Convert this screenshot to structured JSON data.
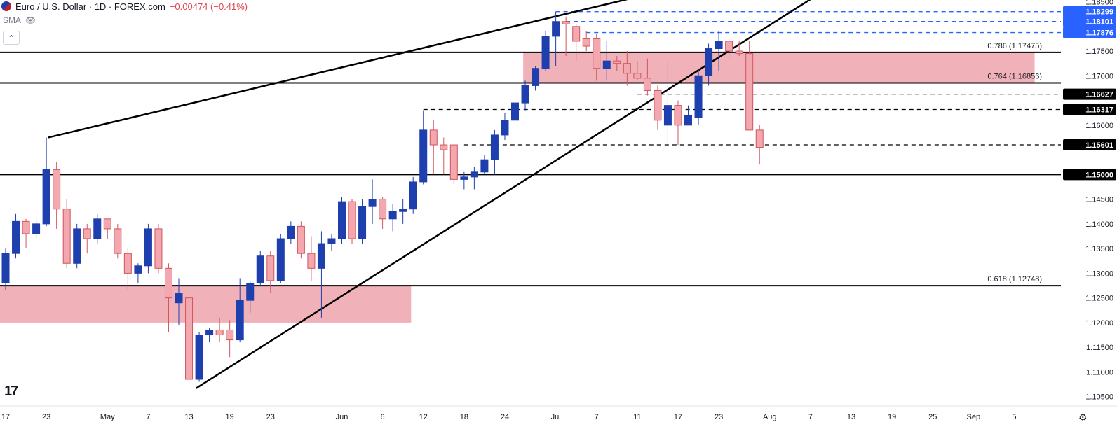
{
  "header": {
    "symbol": "Euro / U.S. Dollar · 1D · FOREX.com",
    "change": "−0.00474 (−0.41%)",
    "indicator": "SMA"
  },
  "colors": {
    "up": "#1e3fae",
    "down_fill": "#f3a7ae",
    "down_border": "#d2555f",
    "zone": "#f0a9b1",
    "badge_blue": "#2962ff",
    "badge_black": "#000000"
  },
  "chart_data": {
    "type": "candlestick",
    "ylim": [
      1.10311,
      1.18536
    ],
    "y_ticks": [
      "1.18500",
      "1.17500",
      "1.17000",
      "1.16000",
      "1.14500",
      "1.14000",
      "1.13500",
      "1.13000",
      "1.12500",
      "1.12000",
      "1.11500",
      "1.11000",
      "1.10500"
    ],
    "x_labels": [
      {
        "i": 0,
        "label": "17"
      },
      {
        "i": 4,
        "label": "23"
      },
      {
        "i": 10,
        "label": "May"
      },
      {
        "i": 14,
        "label": "7"
      },
      {
        "i": 18,
        "label": "13"
      },
      {
        "i": 22,
        "label": "19"
      },
      {
        "i": 26,
        "label": "23"
      },
      {
        "i": 33,
        "label": "Jun"
      },
      {
        "i": 37,
        "label": "6"
      },
      {
        "i": 41,
        "label": "12"
      },
      {
        "i": 45,
        "label": "18"
      },
      {
        "i": 49,
        "label": "24"
      },
      {
        "i": 54,
        "label": "Jul"
      },
      {
        "i": 58,
        "label": "7"
      },
      {
        "i": 62,
        "label": "11"
      },
      {
        "i": 66,
        "label": "17"
      },
      {
        "i": 70,
        "label": "23"
      },
      {
        "i": 75,
        "label": "Aug"
      },
      {
        "i": 79,
        "label": "7"
      },
      {
        "i": 83,
        "label": "13"
      },
      {
        "i": 87,
        "label": "19"
      },
      {
        "i": 91,
        "label": "25"
      },
      {
        "i": 95,
        "label": "Sep"
      },
      {
        "i": 99,
        "label": "5"
      }
    ],
    "candles": [
      [
        1.128,
        1.135,
        1.1265,
        1.134
      ],
      [
        1.134,
        1.142,
        1.133,
        1.1405
      ],
      [
        1.1405,
        1.141,
        1.135,
        1.138
      ],
      [
        1.138,
        1.141,
        1.137,
        1.14
      ],
      [
        1.14,
        1.1575,
        1.1395,
        1.151
      ],
      [
        1.151,
        1.1525,
        1.139,
        1.143
      ],
      [
        1.143,
        1.145,
        1.131,
        1.132
      ],
      [
        1.132,
        1.14,
        1.131,
        1.139
      ],
      [
        1.139,
        1.14,
        1.134,
        1.137
      ],
      [
        1.137,
        1.142,
        1.136,
        1.141
      ],
      [
        1.141,
        1.141,
        1.137,
        1.139
      ],
      [
        1.139,
        1.14,
        1.133,
        1.134
      ],
      [
        1.134,
        1.135,
        1.1265,
        1.13
      ],
      [
        1.13,
        1.132,
        1.128,
        1.1315
      ],
      [
        1.1315,
        1.14,
        1.13,
        1.139
      ],
      [
        1.139,
        1.14,
        1.13,
        1.131
      ],
      [
        1.131,
        1.132,
        1.118,
        1.125
      ],
      [
        1.124,
        1.129,
        1.1195,
        1.126
      ],
      [
        1.125,
        1.125,
        1.1075,
        1.1085
      ],
      [
        1.1085,
        1.118,
        1.108,
        1.1175
      ],
      [
        1.1175,
        1.119,
        1.116,
        1.1185
      ],
      [
        1.1185,
        1.121,
        1.116,
        1.1175
      ],
      [
        1.1185,
        1.1205,
        1.113,
        1.1165
      ],
      [
        1.1165,
        1.129,
        1.116,
        1.1245
      ],
      [
        1.1245,
        1.1285,
        1.122,
        1.128
      ],
      [
        1.128,
        1.1345,
        1.1275,
        1.1335
      ],
      [
        1.1335,
        1.1345,
        1.126,
        1.1285
      ],
      [
        1.1285,
        1.138,
        1.128,
        1.137
      ],
      [
        1.137,
        1.1405,
        1.136,
        1.1395
      ],
      [
        1.1395,
        1.1405,
        1.133,
        1.134
      ],
      [
        1.134,
        1.1375,
        1.1285,
        1.131
      ],
      [
        1.131,
        1.1385,
        1.121,
        1.136
      ],
      [
        1.136,
        1.138,
        1.1345,
        1.137
      ],
      [
        1.137,
        1.1455,
        1.136,
        1.1445
      ],
      [
        1.1445,
        1.145,
        1.136,
        1.137
      ],
      [
        1.137,
        1.145,
        1.136,
        1.1435
      ],
      [
        1.1435,
        1.149,
        1.14,
        1.145
      ],
      [
        1.145,
        1.1455,
        1.139,
        1.141
      ],
      [
        1.141,
        1.144,
        1.1385,
        1.1425
      ],
      [
        1.1425,
        1.145,
        1.14,
        1.143
      ],
      [
        1.143,
        1.1495,
        1.142,
        1.1485
      ],
      [
        1.1485,
        1.163,
        1.148,
        1.159
      ],
      [
        1.159,
        1.161,
        1.15,
        1.156
      ],
      [
        1.156,
        1.1575,
        1.15,
        1.155
      ],
      [
        1.156,
        1.156,
        1.148,
        1.149
      ],
      [
        1.149,
        1.1505,
        1.147,
        1.1495
      ],
      [
        1.1495,
        1.1515,
        1.147,
        1.1505
      ],
      [
        1.1505,
        1.154,
        1.15,
        1.153
      ],
      [
        1.153,
        1.159,
        1.15,
        1.158
      ],
      [
        1.158,
        1.1625,
        1.157,
        1.161
      ],
      [
        1.161,
        1.165,
        1.16,
        1.1645
      ],
      [
        1.1645,
        1.169,
        1.163,
        1.168
      ],
      [
        1.168,
        1.172,
        1.167,
        1.1715
      ],
      [
        1.1715,
        1.179,
        1.171,
        1.178
      ],
      [
        1.178,
        1.183,
        1.172,
        1.181
      ],
      [
        1.181,
        1.182,
        1.174,
        1.1805
      ],
      [
        1.18,
        1.1805,
        1.173,
        1.177
      ],
      [
        1.1775,
        1.179,
        1.175,
        1.176
      ],
      [
        1.1775,
        1.1785,
        1.169,
        1.1715
      ],
      [
        1.1715,
        1.177,
        1.169,
        1.173
      ],
      [
        1.173,
        1.174,
        1.171,
        1.1725
      ],
      [
        1.1725,
        1.175,
        1.168,
        1.1705
      ],
      [
        1.1705,
        1.173,
        1.169,
        1.1695
      ],
      [
        1.1695,
        1.1735,
        1.166,
        1.167
      ],
      [
        1.167,
        1.168,
        1.159,
        1.161
      ],
      [
        1.16,
        1.173,
        1.1555,
        1.164
      ],
      [
        1.164,
        1.165,
        1.156,
        1.16
      ],
      [
        1.16,
        1.164,
        1.16,
        1.162
      ],
      [
        1.1615,
        1.1715,
        1.16,
        1.17
      ],
      [
        1.17,
        1.1765,
        1.168,
        1.1755
      ],
      [
        1.1755,
        1.179,
        1.171,
        1.177
      ],
      [
        1.177,
        1.1775,
        1.1735,
        1.175
      ],
      [
        1.175,
        1.177,
        1.174,
        1.1745
      ],
      [
        1.1745,
        1.177,
        1.159,
        1.159
      ],
      [
        1.159,
        1.16,
        1.152,
        1.1555
      ]
    ],
    "horizontal_levels": [
      {
        "price": 1.17475,
        "style": "solid",
        "label": "0.786 (1.17475)"
      },
      {
        "price": 1.16856,
        "style": "solid",
        "label": "0.764 (1.16856)"
      },
      {
        "price": 1.12748,
        "style": "solid",
        "label": "0.618 (1.12748)"
      },
      {
        "price": 1.15,
        "style": "solid",
        "badge": "1.15000"
      },
      {
        "price": 1.16627,
        "style": "dashed",
        "badge": "1.16627",
        "from_i": 62
      },
      {
        "price": 1.16317,
        "style": "dashed",
        "badge": "1.16317",
        "from_i": 41
      },
      {
        "price": 1.15601,
        "style": "dashed",
        "badge": "1.15601",
        "from_i": 45
      },
      {
        "price": 1.18299,
        "style": "dashed_blue",
        "badge": "1.18299",
        "from_i": 54
      },
      {
        "price": 1.18101,
        "style": "dashed_blue",
        "badge": "1.18101",
        "from_i": 55
      },
      {
        "price": 1.17876,
        "style": "dashed_blue",
        "badge": "1.17876",
        "from_i": 57
      }
    ],
    "zones": [
      {
        "from_i": -1,
        "to_i": 39.8,
        "low": 1.12,
        "high": 1.12748
      },
      {
        "from_i": 50.8,
        "to_i": 101,
        "low": 1.16856,
        "high": 1.17475
      }
    ],
    "trendlines": [
      {
        "i1": 4.2,
        "p1": 1.1575,
        "i2": 61,
        "p2": 1.1855
      },
      {
        "i1": 18.7,
        "p1": 1.1067,
        "i2": 79,
        "p2": 1.1855
      }
    ]
  }
}
